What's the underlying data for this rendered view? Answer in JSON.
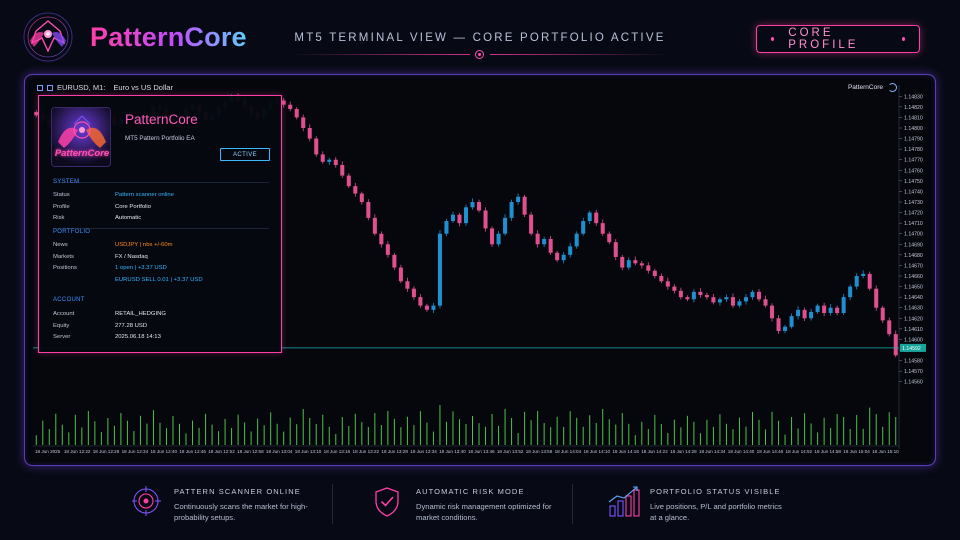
{
  "header": {
    "brand": "PatternCore",
    "title": "MT5 TERMINAL VIEW — CORE PORTFOLIO ACTIVE",
    "profile_button": "CORE PROFILE"
  },
  "terminal": {
    "symbol": "EURUSD, M1:",
    "symbol_desc": "Euro vs US Dollar",
    "ea_label": "PatternCore",
    "current_price": "1.14592"
  },
  "panel": {
    "logo_text": "PatternCore",
    "title": "PatternCore",
    "subtitle": "MT5 Pattern Portfolio EA",
    "status_button": "ACTIVE",
    "sections": {
      "system": "SYSTEM",
      "portfolio": "PORTFOLIO",
      "account": "ACCOUNT"
    },
    "system_rows": [
      {
        "k": "Status",
        "v": "Pattern scanner online"
      },
      {
        "k": "Profile",
        "v": "Core Portfolio"
      },
      {
        "k": "Risk",
        "v": "Automatic"
      }
    ],
    "portfolio_rows": [
      {
        "k": "News",
        "v": "USDJPY | nbs +/-60m"
      },
      {
        "k": "Markets",
        "v": "FX / Nasdaq"
      },
      {
        "k": "Positions",
        "v": "1 open | +3.37 USD"
      },
      {
        "k": "",
        "v": "EURUSD SELL 0.01 | +3.37 USD"
      }
    ],
    "account_rows": [
      {
        "k": "Account",
        "v": "RETAIL_HEDGING"
      },
      {
        "k": "Equity",
        "v": "277.28 USD"
      },
      {
        "k": "Server",
        "v": "2025.06.18 14:13"
      }
    ]
  },
  "features": [
    {
      "icon": "target-icon",
      "title": "PATTERN SCANNER ONLINE",
      "desc": "Continuously scans the market for high-probability setups."
    },
    {
      "icon": "shield-check-icon",
      "title": "AUTOMATIC RISK MODE",
      "desc": "Dynamic risk management optimized for market conditions."
    },
    {
      "icon": "growth-chart-icon",
      "title": "PORTFOLIO STATUS VISIBLE",
      "desc": "Live positions, P/L and portfolio metrics at a glance."
    }
  ],
  "colors": {
    "bull": "#1f8fcf",
    "bear": "#e0508f",
    "volume": "#4fc24a",
    "accent_pink": "#ff3fa6",
    "accent_cyan": "#3fd3ff"
  },
  "chart_data": {
    "type": "candlestick",
    "symbol": "EURUSD",
    "timeframe": "M1",
    "ylim": [
      1.14555,
      1.14835
    ],
    "y_ticks": [
      "1.14830",
      "1.14820",
      "1.14810",
      "1.14800",
      "1.14790",
      "1.14780",
      "1.14770",
      "1.14760",
      "1.14750",
      "1.14740",
      "1.14730",
      "1.14720",
      "1.14710",
      "1.14700",
      "1.14690",
      "1.14680",
      "1.14670",
      "1.14660",
      "1.14650",
      "1.14640",
      "1.14630",
      "1.14620",
      "1.14610",
      "1.14600",
      "1.14590",
      "1.14580",
      "1.14570",
      "1.14560"
    ],
    "x_ticks": [
      "18 Jun 2025",
      "18 Jun 12:22",
      "18 Jun 12:28",
      "18 Jun 12:34",
      "18 Jun 12:40",
      "18 Jun 12:46",
      "18 Jun 12:52",
      "18 Jun 12:58",
      "18 Jun 13:04",
      "18 Jun 13:10",
      "18 Jun 13:16",
      "18 Jun 13:22",
      "18 Jun 13:28",
      "18 Jun 13:34",
      "18 Jun 13:40",
      "18 Jun 13:46",
      "18 Jun 13:52",
      "18 Jun 13:58",
      "18 Jun 14:04",
      "18 Jun 14:10",
      "18 Jun 14:16",
      "18 Jun 14:22",
      "18 Jun 14:28",
      "18 Jun 14:34",
      "18 Jun 14:40",
      "18 Jun 14:46",
      "18 Jun 14:52",
      "18 Jun 14:58",
      "18 Jun 15:04",
      "18 Jun 15:10"
    ],
    "candles_visible_from": 40,
    "close_path": [
      1.14812,
      1.14808,
      1.14803,
      1.1481,
      1.14806,
      1.148,
      1.14812,
      1.14818,
      1.14808,
      1.148,
      1.14805,
      1.1481,
      1.14803,
      1.14808,
      1.14815,
      1.1481,
      1.14803,
      1.14812,
      1.1482,
      1.14818,
      1.1481,
      1.14805,
      1.14812,
      1.14818,
      1.14822,
      1.14815,
      1.14808,
      1.14812,
      1.1482,
      1.14825,
      1.1483,
      1.14826,
      1.1482,
      1.14814,
      1.1481,
      1.14818,
      1.14824,
      1.14826,
      1.14822,
      1.14818,
      1.1481,
      1.148,
      1.1479,
      1.14775,
      1.14768,
      1.1477,
      1.14765,
      1.14755,
      1.14745,
      1.14738,
      1.1473,
      1.14715,
      1.147,
      1.1469,
      1.1468,
      1.14668,
      1.14655,
      1.14648,
      1.1464,
      1.14632,
      1.14628,
      1.14632,
      1.147,
      1.14712,
      1.14718,
      1.1471,
      1.14725,
      1.1473,
      1.14722,
      1.14705,
      1.1469,
      1.147,
      1.14715,
      1.1473,
      1.14735,
      1.14718,
      1.147,
      1.1469,
      1.14695,
      1.14682,
      1.14675,
      1.1468,
      1.14688,
      1.147,
      1.14712,
      1.1472,
      1.1471,
      1.147,
      1.14692,
      1.14678,
      1.14668,
      1.14675,
      1.14672,
      1.1467,
      1.14665,
      1.1466,
      1.14655,
      1.1465,
      1.14646,
      1.1464,
      1.14638,
      1.14645,
      1.14642,
      1.1464,
      1.14635,
      1.14638,
      1.1464,
      1.14632,
      1.14636,
      1.1464,
      1.14645,
      1.14638,
      1.14632,
      1.1462,
      1.14608,
      1.14612,
      1.14622,
      1.14628,
      1.1462,
      1.14626,
      1.14632,
      1.14625,
      1.1463,
      1.14625,
      1.1464,
      1.1465,
      1.1466,
      1.14662,
      1.14648,
      1.1463,
      1.14618,
      1.14605,
      1.14585
    ],
    "volume_scale": "relative"
  }
}
